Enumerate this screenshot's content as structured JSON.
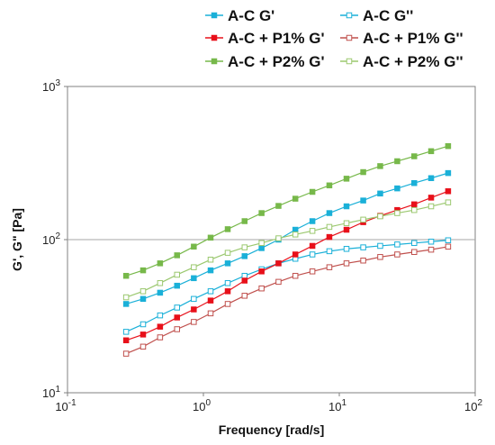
{
  "chart_data": {
    "type": "line",
    "xlabel": "Frequency [rad/s]",
    "ylabel": "G', G\" [Pa]",
    "x_scale": "log",
    "y_scale": "log",
    "xlim": [
      0.1,
      100
    ],
    "ylim": [
      10,
      1000
    ],
    "x_ticks": [
      {
        "value": 0.1,
        "base": "10",
        "exp": "-1"
      },
      {
        "value": 1,
        "base": "10",
        "exp": "0"
      },
      {
        "value": 10,
        "base": "10",
        "exp": "1"
      },
      {
        "value": 100,
        "base": "10",
        "exp": "2"
      }
    ],
    "y_ticks": [
      {
        "value": 10,
        "base": "10",
        "exp": "1"
      },
      {
        "value": 100,
        "base": "10",
        "exp": "2"
      },
      {
        "value": 1000,
        "base": "10",
        "exp": "3"
      }
    ],
    "gridlines": [
      100
    ],
    "legend_position": "top",
    "x": [
      0.27,
      0.36,
      0.48,
      0.64,
      0.85,
      1.13,
      1.51,
      2.01,
      2.68,
      3.57,
      4.75,
      6.34,
      8.45,
      11.3,
      15.0,
      20.0,
      26.7,
      35.6,
      47.4,
      63.2
    ],
    "series": [
      {
        "name": "A-C G'",
        "color": "#1ab0d8",
        "marker": "filled",
        "values": [
          38,
          41,
          45,
          50,
          56,
          63,
          70,
          78,
          88,
          100,
          116,
          132,
          149,
          165,
          180,
          200,
          216,
          234,
          252,
          272
        ]
      },
      {
        "name": "A-C G''",
        "color": "#1ab0d8",
        "marker": "open",
        "values": [
          25,
          28,
          32,
          36,
          41,
          46,
          52,
          58,
          64,
          70,
          75,
          80,
          84,
          87,
          89,
          91,
          93,
          95,
          97,
          99
        ]
      },
      {
        "name": "A-C + P1% G'",
        "color": "#e8101a",
        "marker": "filled",
        "values": [
          22,
          24,
          27,
          31,
          35,
          40,
          46,
          54,
          62,
          70,
          80,
          91,
          104,
          116,
          130,
          143,
          156,
          170,
          188,
          207
        ]
      },
      {
        "name": "A-C + P1% G''",
        "color": "#c0504d",
        "marker": "open",
        "values": [
          18,
          20,
          23,
          26,
          29,
          33,
          38,
          43,
          48,
          53,
          58,
          62,
          66,
          70,
          73,
          77,
          80,
          83,
          86,
          90
        ]
      },
      {
        "name": "A-C + P2% G'",
        "color": "#77b84a",
        "marker": "filled",
        "values": [
          58,
          63,
          70,
          79,
          90,
          103,
          117,
          132,
          149,
          166,
          185,
          205,
          226,
          250,
          276,
          302,
          325,
          350,
          378,
          408
        ]
      },
      {
        "name": "A-C + P2% G''",
        "color": "#9bc86f",
        "marker": "open",
        "values": [
          42,
          46,
          52,
          59,
          66,
          74,
          82,
          89,
          95,
          102,
          108,
          114,
          121,
          128,
          135,
          142,
          149,
          156,
          165,
          175
        ]
      }
    ]
  }
}
